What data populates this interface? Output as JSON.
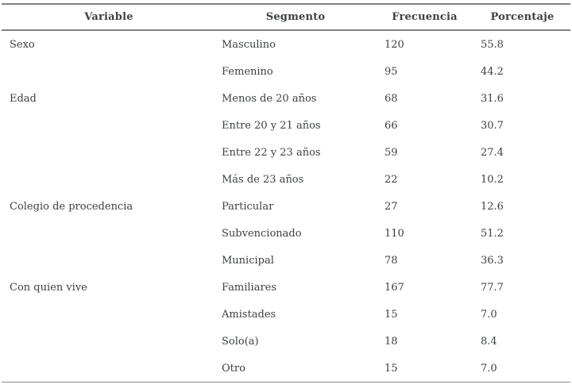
{
  "table": {
    "columns": [
      "Variable",
      "Segmento",
      "Frecuencia",
      "Porcentaje"
    ],
    "rows": [
      {
        "variable": "Sexo",
        "segmento": "Masculino",
        "frecuencia": "120",
        "porcentaje": "55.8"
      },
      {
        "variable": "",
        "segmento": "Femenino",
        "frecuencia": "95",
        "porcentaje": "44.2"
      },
      {
        "variable": "Edad",
        "segmento": "Menos de 20 años",
        "frecuencia": "68",
        "porcentaje": "31.6"
      },
      {
        "variable": "",
        "segmento": "Entre 20 y 21 años",
        "frecuencia": "66",
        "porcentaje": "30.7"
      },
      {
        "variable": "",
        "segmento": "Entre 22 y 23 años",
        "frecuencia": "59",
        "porcentaje": "27.4"
      },
      {
        "variable": "",
        "segmento": "Más de 23 años",
        "frecuencia": "22",
        "porcentaje": "10.2"
      },
      {
        "variable": "Colegio de procedencia",
        "segmento": "Particular",
        "frecuencia": "27",
        "porcentaje": "12.6"
      },
      {
        "variable": "",
        "segmento": "Subvencionado",
        "frecuencia": "110",
        "porcentaje": "51.2"
      },
      {
        "variable": "",
        "segmento": "Municipal",
        "frecuencia": "78",
        "porcentaje": "36.3"
      },
      {
        "variable": "Con quien vive",
        "segmento": "Familiares",
        "frecuencia": "167",
        "porcentaje": "77.7"
      },
      {
        "variable": "",
        "segmento": "Amistades",
        "frecuencia": "15",
        "porcentaje": "7.0"
      },
      {
        "variable": "",
        "segmento": "Solo(a)",
        "frecuencia": "18",
        "porcentaje": "8.4"
      },
      {
        "variable": "",
        "segmento": "Otro",
        "frecuencia": "15",
        "porcentaje": "7.0"
      }
    ],
    "colors": {
      "text": "#3d4043",
      "rule": "#818181",
      "background": "#ffffff"
    }
  }
}
